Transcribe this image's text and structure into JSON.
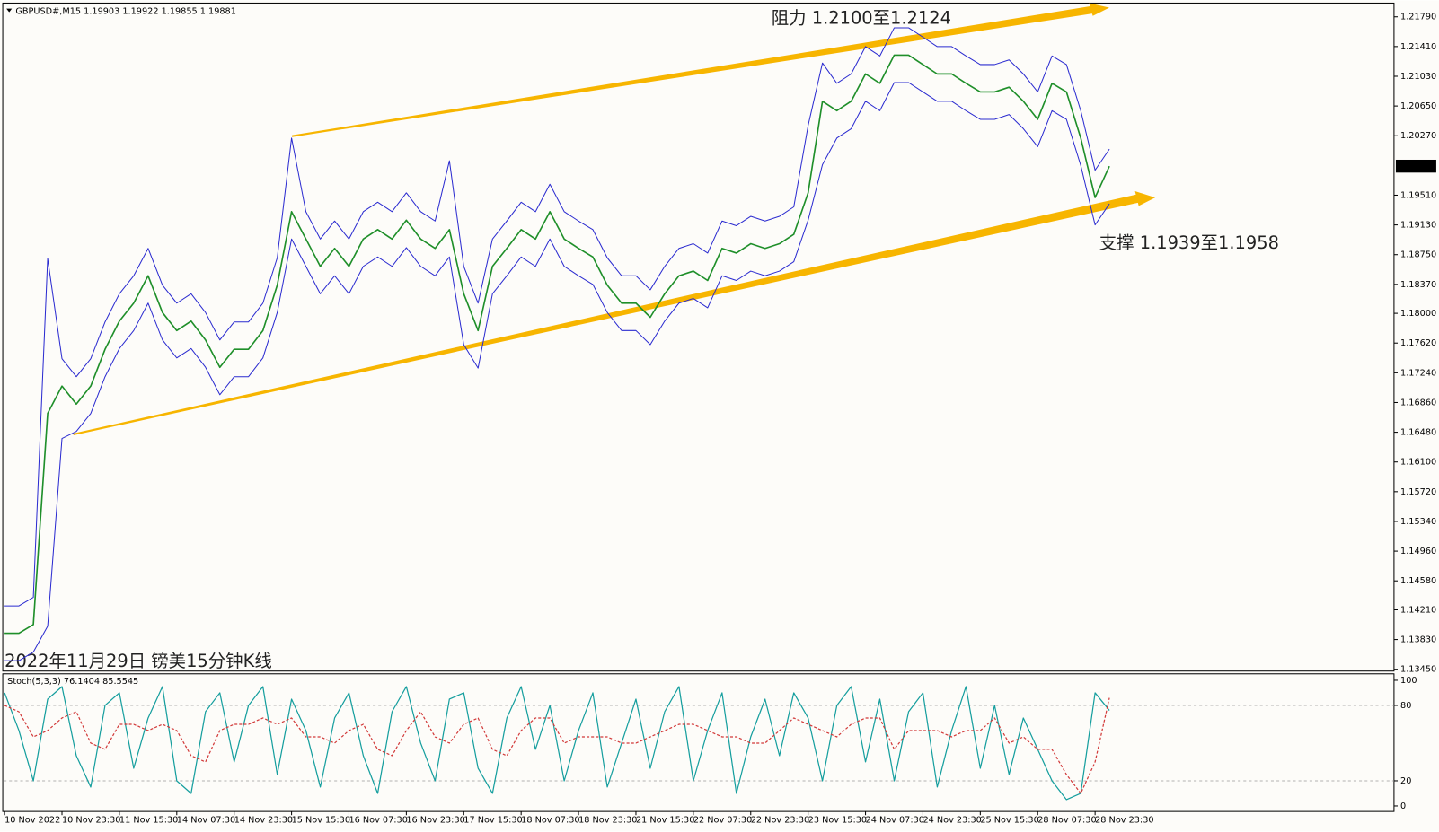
{
  "chart_data": [
    {
      "type": "line",
      "title": "2022年11月29日 镑美15分钟K线",
      "subtitle": "GBPUSD#,M15  1.19903 1.19922 1.19855 1.19881",
      "annotations": [
        "阻力 1.2100至1.2124",
        "支撑 1.1939至1.1958"
      ],
      "categories": [
        "10 Nov 2022",
        null,
        null,
        null,
        "10 Nov 23:30",
        null,
        null,
        null,
        "11 Nov 15:30",
        null,
        null,
        null,
        "14 Nov 07:30",
        null,
        null,
        null,
        "14 Nov 23:30",
        null,
        null,
        null,
        "15 Nov 15:30",
        null,
        null,
        null,
        "16 Nov 07:30",
        null,
        null,
        null,
        "16 Nov 23:30",
        null,
        null,
        null,
        "17 Nov 15:30",
        null,
        null,
        null,
        "18 Nov 07:30",
        null,
        null,
        null,
        "18 Nov 23:30",
        null,
        null,
        null,
        "21 Nov 15:30",
        null,
        null,
        null,
        "22 Nov 07:30",
        null,
        null,
        null,
        "22 Nov 23:30",
        null,
        null,
        null,
        "23 Nov 15:30",
        null,
        null,
        null,
        "24 Nov 07:30",
        null,
        null,
        null,
        "24 Nov 23:30",
        null,
        null,
        null,
        "25 Nov 15:30",
        null,
        null,
        null,
        "28 Nov 07:30",
        null,
        null,
        null,
        "28 Nov 23:30",
        null
      ],
      "series": [
        {
          "color": "#1f8f2a",
          "width": 1.6,
          "values": [
            1.1391,
            1.1391,
            1.1402,
            1.1672,
            1.1707,
            1.1684,
            1.1707,
            1.1754,
            1.179,
            1.1813,
            1.1848,
            1.1801,
            1.1778,
            1.179,
            1.1766,
            1.1731,
            1.1754,
            1.1754,
            1.1778,
            1.1836,
            1.193,
            1.1895,
            1.186,
            1.1883,
            1.186,
            1.1895,
            1.1907,
            1.1895,
            1.1919,
            1.1895,
            1.1883,
            1.1907,
            1.1825,
            1.1778,
            1.186,
            1.1883,
            1.1907,
            1.1895,
            1.193,
            1.1895,
            1.1883,
            1.1872,
            1.1836,
            1.1813,
            1.1813,
            1.1795,
            1.1825,
            1.1848,
            1.1854,
            1.1842,
            1.1883,
            1.1877,
            1.1889,
            1.1883,
            1.1889,
            1.1901,
            1.1954,
            1.2071,
            1.2059,
            1.2071,
            1.2106,
            1.2094,
            1.213,
            1.213,
            1.2118,
            1.2106,
            1.2106,
            1.2094,
            1.2083,
            1.2083,
            1.2089,
            1.2071,
            1.2048,
            1.2094,
            1.2083,
            1.2024,
            1.1948,
            1.1988
          ]
        },
        {
          "color": "#2b2bd0",
          "width": 1,
          "values": [
            1.1426,
            1.1426,
            1.1437,
            1.187,
            1.1742,
            1.1719,
            1.1742,
            1.1789,
            1.1825,
            1.1848,
            1.1883,
            1.1836,
            1.1813,
            1.1825,
            1.1801,
            1.1766,
            1.1789,
            1.1789,
            1.1813,
            1.1871,
            1.2024,
            1.193,
            1.1895,
            1.1918,
            1.1895,
            1.193,
            1.1942,
            1.193,
            1.1954,
            1.193,
            1.1918,
            1.1995,
            1.186,
            1.1813,
            1.1895,
            1.1918,
            1.1942,
            1.193,
            1.1965,
            1.193,
            1.1918,
            1.1907,
            1.1871,
            1.1848,
            1.1848,
            1.183,
            1.186,
            1.1883,
            1.1889,
            1.1877,
            1.1918,
            1.1912,
            1.1924,
            1.1918,
            1.1924,
            1.1936,
            1.204,
            1.212,
            1.2094,
            1.2106,
            1.2141,
            1.2129,
            1.2165,
            1.2165,
            1.2153,
            1.2141,
            1.2141,
            1.2129,
            1.2118,
            1.2118,
            1.2124,
            1.2106,
            1.2083,
            1.2129,
            1.2118,
            1.2059,
            1.1983,
            1.201
          ]
        },
        {
          "color": "#2b2bd0",
          "width": 1,
          "values": [
            1.1356,
            1.1356,
            1.1367,
            1.14,
            1.164,
            1.1649,
            1.1672,
            1.1719,
            1.1755,
            1.1778,
            1.1813,
            1.1766,
            1.1743,
            1.1755,
            1.1731,
            1.1696,
            1.1719,
            1.1719,
            1.1743,
            1.1801,
            1.1895,
            1.186,
            1.1825,
            1.1848,
            1.1825,
            1.186,
            1.1872,
            1.186,
            1.1884,
            1.186,
            1.1848,
            1.1872,
            1.176,
            1.173,
            1.1825,
            1.1848,
            1.1872,
            1.186,
            1.1895,
            1.186,
            1.1848,
            1.1837,
            1.1801,
            1.1778,
            1.1778,
            1.176,
            1.179,
            1.1813,
            1.1819,
            1.1807,
            1.1848,
            1.1842,
            1.1854,
            1.1848,
            1.1854,
            1.1866,
            1.1919,
            1.199,
            1.2024,
            1.2036,
            1.2071,
            1.2059,
            1.2095,
            1.2095,
            1.2083,
            1.2071,
            1.2071,
            1.2059,
            1.2048,
            1.2048,
            1.2054,
            1.2036,
            1.2013,
            1.2059,
            1.2048,
            1.1989,
            1.1913,
            1.194
          ]
        }
      ],
      "ylim": [
        1.13427,
        1.21942
      ],
      "yticks": [
        {
          "value": 1.2179,
          "label": "1.21790"
        },
        {
          "value": 1.2141,
          "label": "1.21410"
        },
        {
          "value": 1.2103,
          "label": "1.21030"
        },
        {
          "value": 1.2065,
          "label": "1.20650"
        },
        {
          "value": 1.2027,
          "label": "1.20270"
        },
        {
          "value": 1.1951,
          "label": "1.19510"
        },
        {
          "value": 1.1913,
          "label": "1.19130"
        },
        {
          "value": 1.1875,
          "label": "1.18750"
        },
        {
          "value": 1.1837,
          "label": "1.18370"
        },
        {
          "value": 1.18,
          "label": "1.18000"
        },
        {
          "value": 1.1762,
          "label": "1.17620"
        },
        {
          "value": 1.1724,
          "label": "1.17240"
        },
        {
          "value": 1.1686,
          "label": "1.16860"
        },
        {
          "value": 1.1648,
          "label": "1.16480"
        },
        {
          "value": 1.161,
          "label": "1.16100"
        },
        {
          "value": 1.1572,
          "label": "1.15720"
        },
        {
          "value": 1.1534,
          "label": "1.15340"
        },
        {
          "value": 1.1496,
          "label": "1.14960"
        },
        {
          "value": 1.1458,
          "label": "1.14580"
        },
        {
          "value": 1.1421,
          "label": "1.14210"
        },
        {
          "value": 1.1383,
          "label": "1.13830"
        },
        {
          "value": 1.1345,
          "label": "1.13450"
        }
      ],
      "last_price": {
        "value": 1.19881,
        "label": "1.19881"
      }
    },
    {
      "type": "line",
      "title": "Stoch(5,3,3) 76.1404 85.5545",
      "series": [
        {
          "color": "#159e9e",
          "dash": false,
          "values": [
            90,
            60,
            20,
            85,
            95,
            40,
            15,
            80,
            90,
            30,
            70,
            95,
            20,
            10,
            75,
            90,
            35,
            80,
            95,
            25,
            85,
            60,
            15,
            70,
            90,
            40,
            10,
            75,
            95,
            50,
            20,
            85,
            90,
            30,
            10,
            70,
            95,
            45,
            80,
            20,
            60,
            90,
            15,
            50,
            85,
            30,
            75,
            95,
            20,
            60,
            90,
            10,
            55,
            85,
            40,
            90,
            70,
            20,
            80,
            95,
            35,
            85,
            20,
            75,
            90,
            15,
            60,
            95,
            30,
            80,
            25,
            70,
            45,
            20,
            5,
            10,
            90,
            76
          ]
        },
        {
          "color": "#d23a3a",
          "dash": true,
          "values": [
            80,
            75,
            55,
            60,
            70,
            75,
            50,
            45,
            65,
            65,
            60,
            65,
            60,
            40,
            35,
            60,
            65,
            65,
            70,
            65,
            70,
            55,
            55,
            50,
            60,
            65,
            45,
            40,
            60,
            75,
            55,
            50,
            65,
            70,
            45,
            40,
            60,
            70,
            70,
            50,
            55,
            55,
            55,
            50,
            50,
            55,
            60,
            65,
            65,
            60,
            55,
            55,
            50,
            50,
            60,
            70,
            65,
            60,
            55,
            65,
            70,
            70,
            45,
            60,
            60,
            60,
            55,
            60,
            60,
            70,
            50,
            55,
            45,
            45,
            25,
            10,
            35,
            86
          ]
        }
      ],
      "ylim": [
        -4.4,
        104.4
      ],
      "yticks": [
        100,
        80,
        20,
        0
      ]
    }
  ]
}
